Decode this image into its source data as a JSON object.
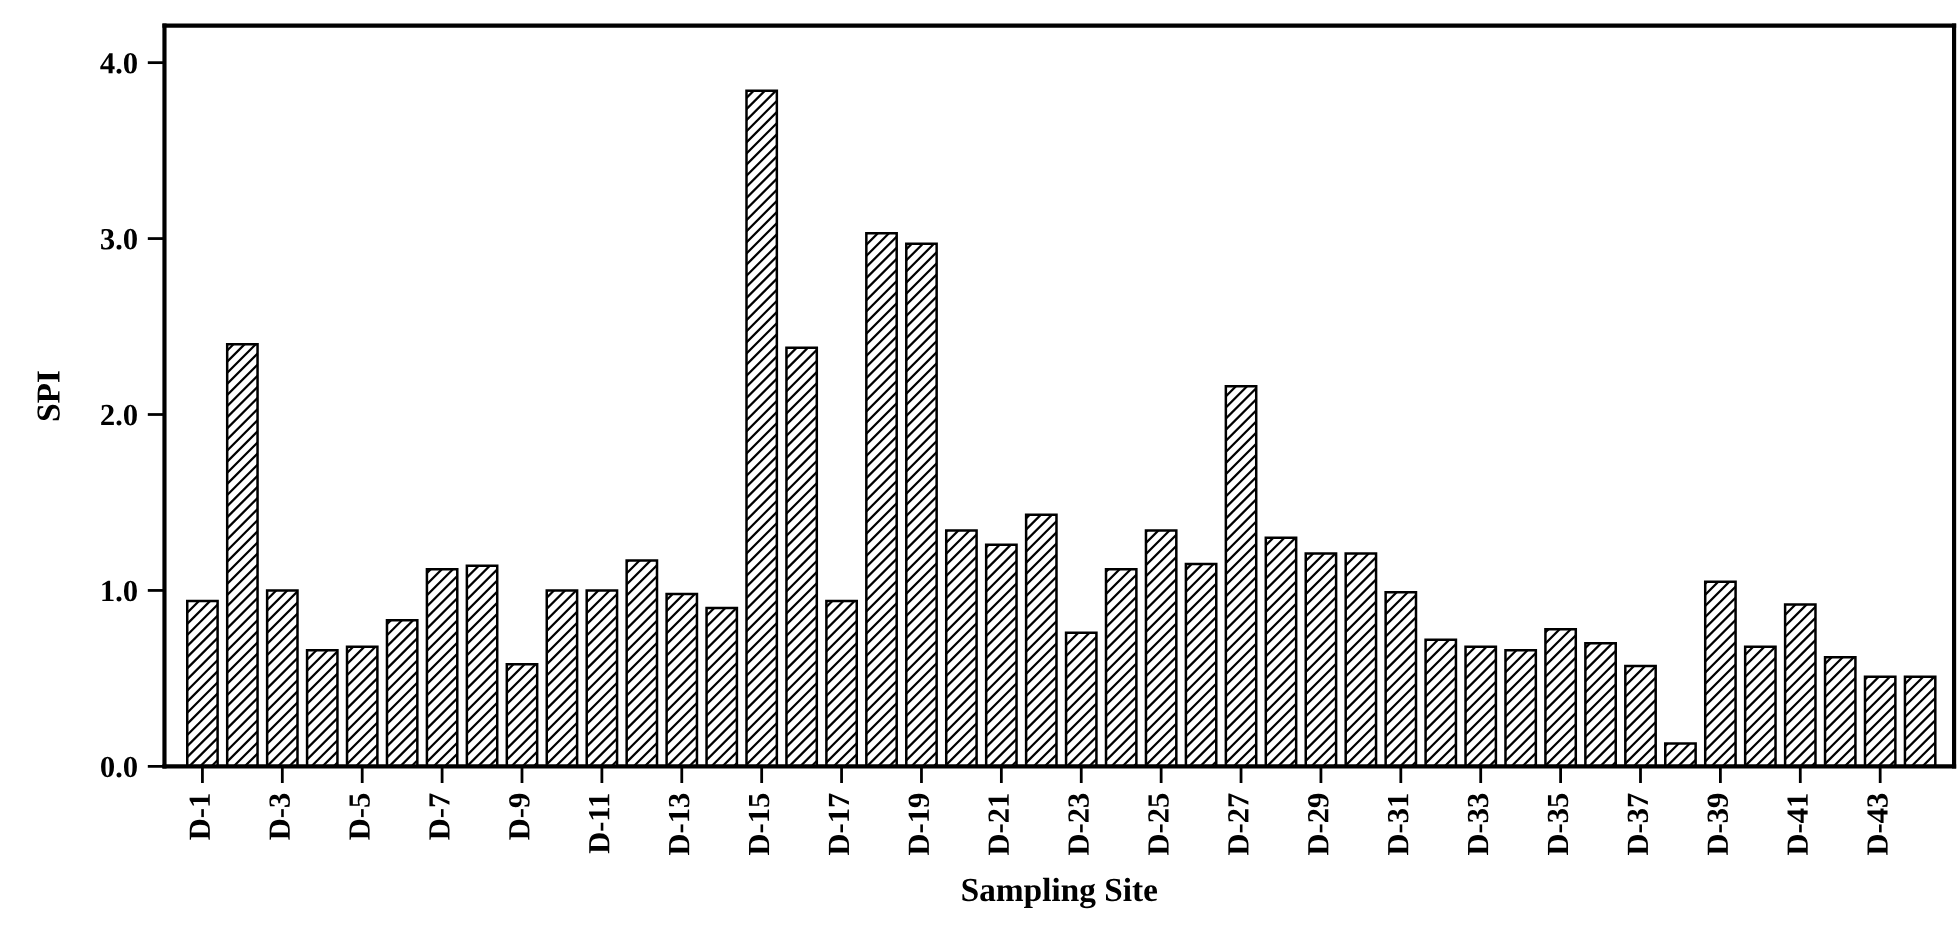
{
  "chart_data": {
    "type": "bar",
    "xlabel": "Sampling Site",
    "ylabel": "SPI",
    "categories": [
      "D-1",
      null,
      "D-3",
      null,
      "D-5",
      null,
      "D-7",
      null,
      "D-9",
      null,
      "D-11",
      null,
      "D-13",
      null,
      "D-15",
      null,
      "D-17",
      null,
      "D-19",
      null,
      "D-21",
      null,
      "D-23",
      null,
      "D-25",
      null,
      "D-27",
      null,
      "D-29",
      null,
      "D-31",
      null,
      "D-33",
      null,
      "D-35",
      null,
      "D-37",
      null,
      "D-39",
      null,
      "D-41",
      null,
      "D-43",
      null
    ],
    "values": [
      0.94,
      2.4,
      1.0,
      0.66,
      0.68,
      0.83,
      1.12,
      1.14,
      0.58,
      1.0,
      1.0,
      1.17,
      0.98,
      0.9,
      3.84,
      2.38,
      0.94,
      3.03,
      2.97,
      1.34,
      1.26,
      1.43,
      0.76,
      1.12,
      1.34,
      1.15,
      2.16,
      1.3,
      1.21,
      1.21,
      0.99,
      0.72,
      0.68,
      0.66,
      0.78,
      0.7,
      0.57,
      0.13,
      1.05,
      0.68,
      0.92,
      0.62,
      0.51,
      0.51
    ],
    "color": "#000000",
    "ylim": [
      0,
      4.21
    ],
    "yticks": [
      {
        "value": 0,
        "label": "0.0"
      },
      {
        "value": 1,
        "label": "1.0"
      },
      {
        "value": 2,
        "label": "2.0"
      },
      {
        "value": 3,
        "label": "3.0"
      },
      {
        "value": 4,
        "label": "4.0"
      }
    ],
    "grid": false,
    "legend": false
  }
}
